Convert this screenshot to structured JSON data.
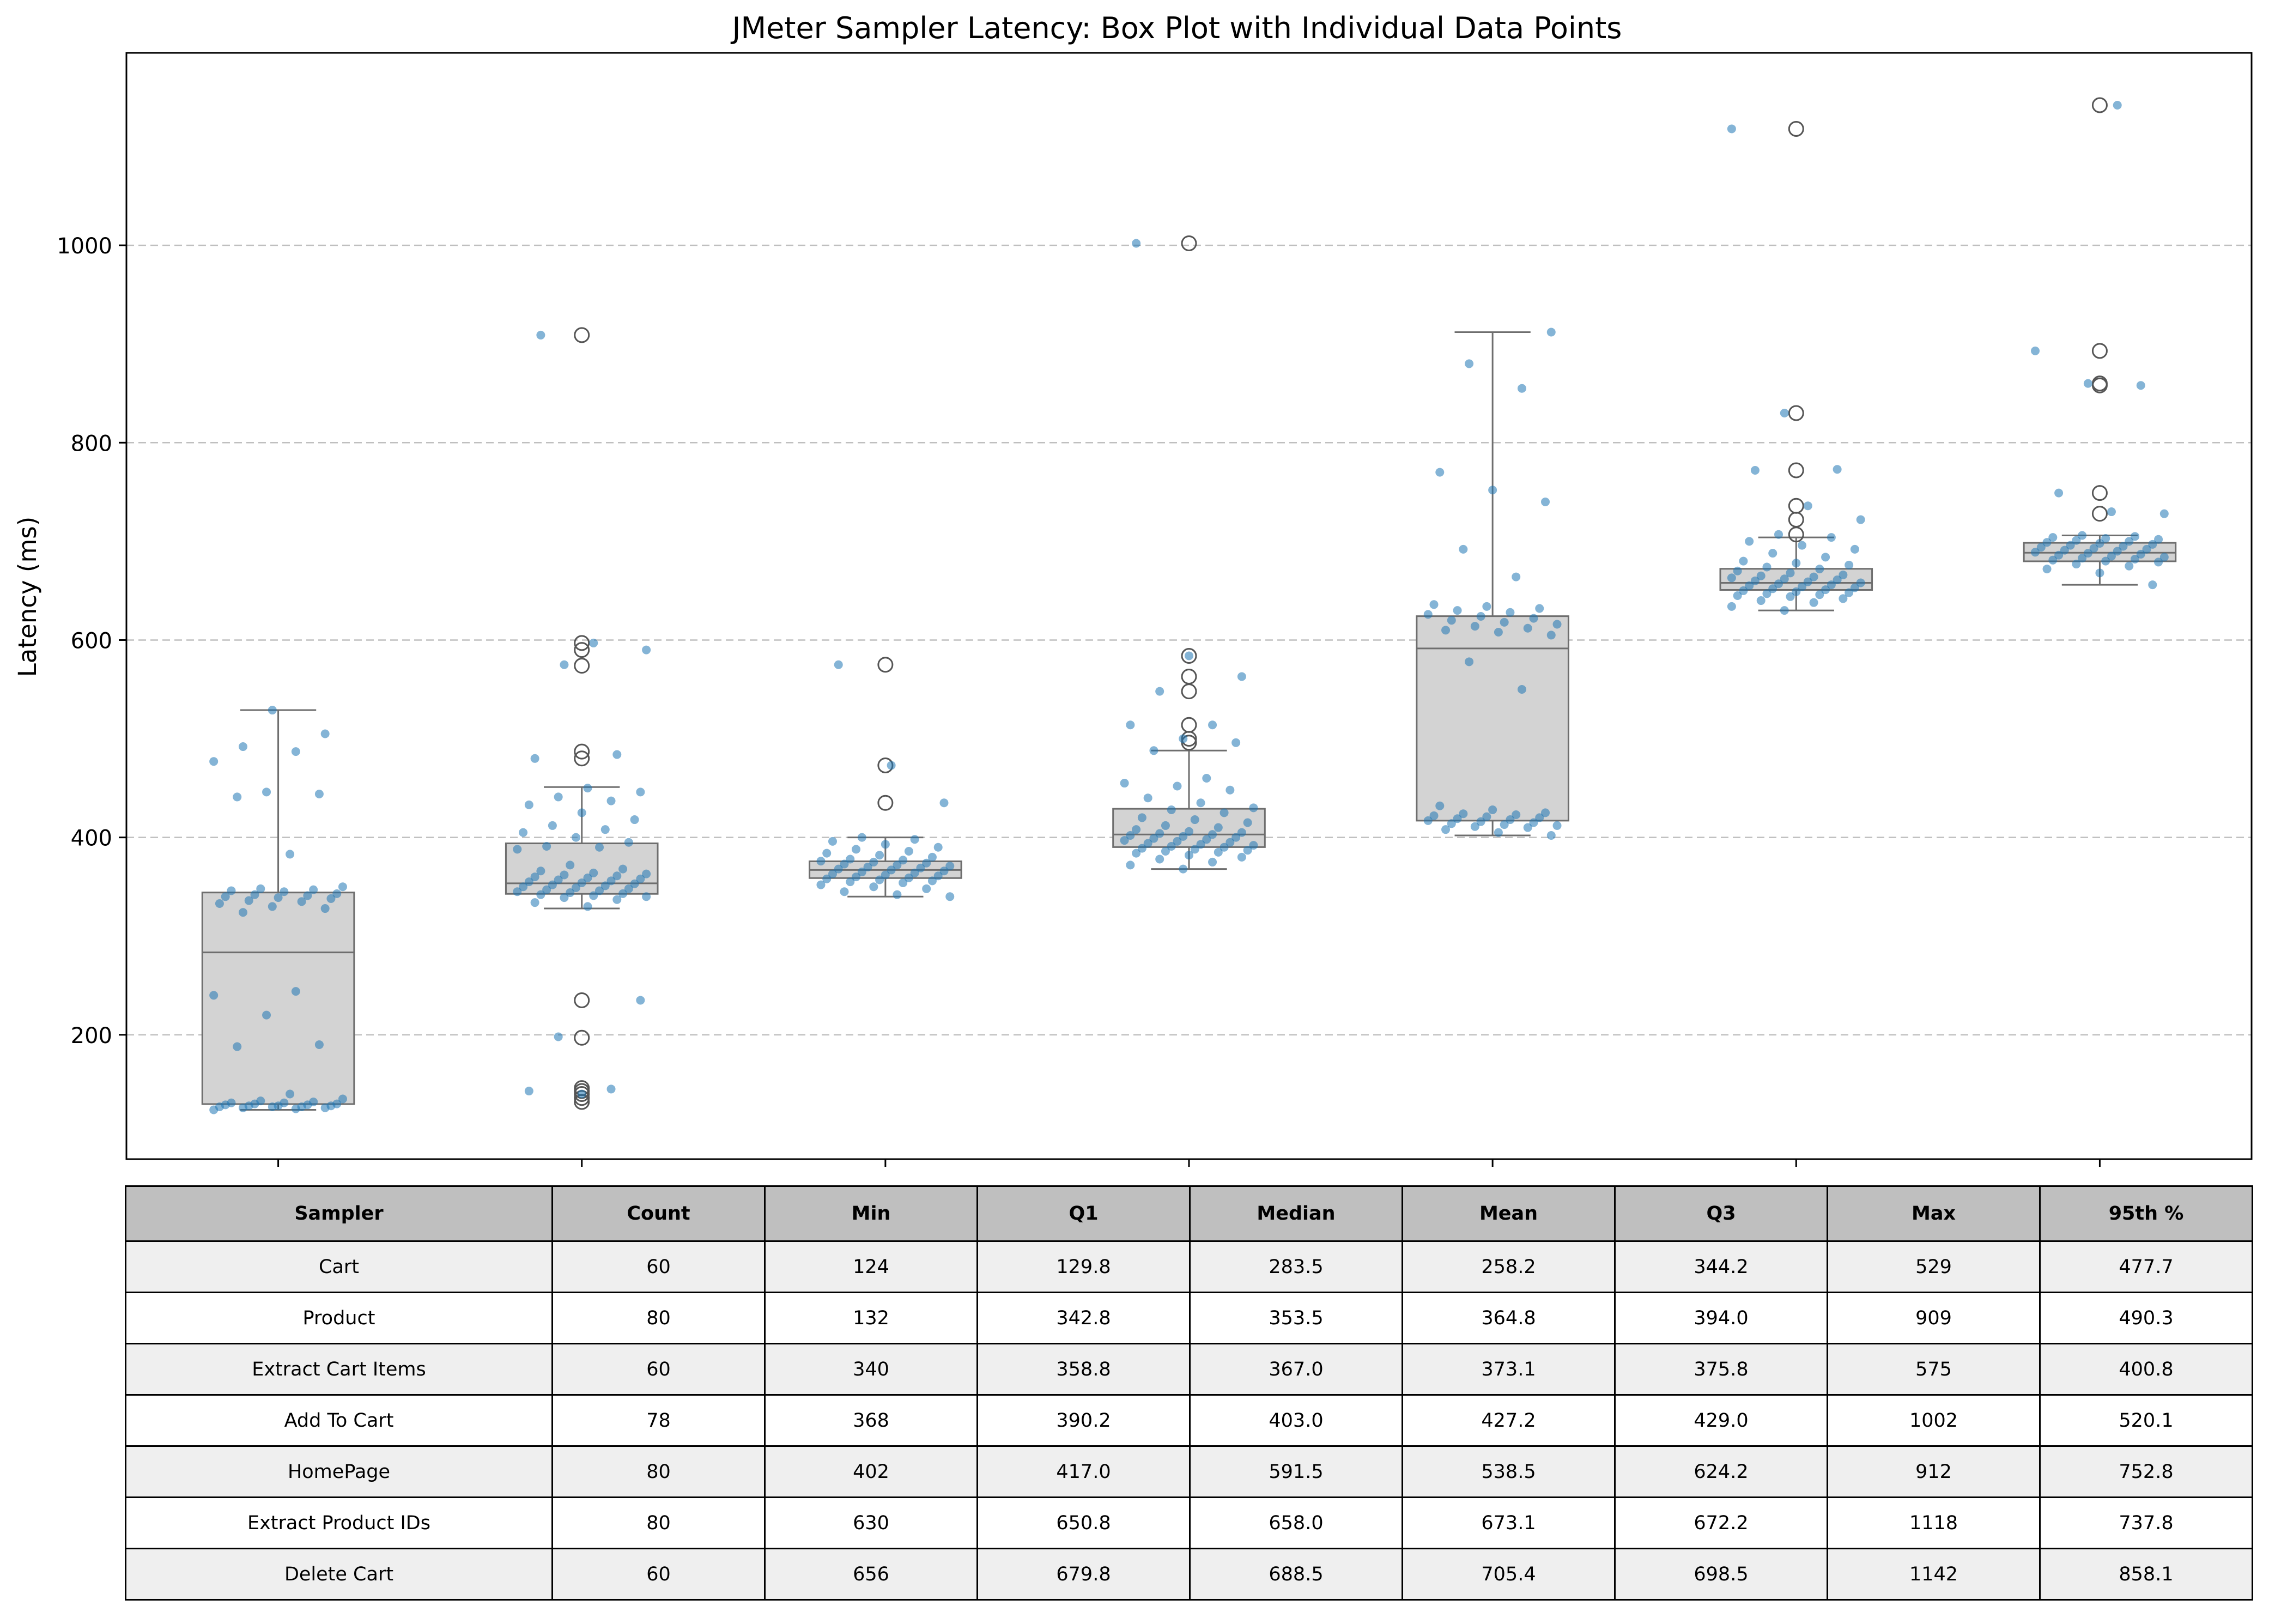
{
  "chart_data": {
    "type": "box",
    "title": "JMeter Sampler Latency: Box Plot with Individual Data Points",
    "xlabel": "",
    "ylabel": "Latency (ms)",
    "ylim": [
      74,
      1195
    ],
    "yticks": [
      200,
      400,
      600,
      800,
      1000
    ],
    "grid": "y-dashed",
    "colors": {
      "box_fill": "#d3d3d3",
      "box_edge": "#6e6e6e",
      "points": "#1f77b4",
      "grid": "#bfbfbf"
    },
    "samplers": [
      {
        "whisker_low": 124,
        "q1": 129.8,
        "median": 283.5,
        "q3": 344.2,
        "whisker_high": 529,
        "outliers": [],
        "points": [
          124,
          125,
          126,
          126,
          127,
          127,
          127,
          128,
          128,
          128,
          129,
          129,
          130,
          130,
          131,
          131,
          132,
          133,
          135,
          140,
          188,
          190,
          220,
          240,
          244,
          324,
          328,
          330,
          333,
          335,
          336,
          338,
          339,
          340,
          341,
          342,
          343,
          345,
          346,
          347,
          348,
          350,
          383,
          441,
          444,
          446,
          477,
          487,
          492,
          505,
          529
        ]
      },
      {
        "whisker_low": 328,
        "q1": 342.8,
        "median": 353.5,
        "q3": 394.0,
        "whisker_high": 451,
        "outliers": [
          132,
          136,
          140,
          143,
          146,
          197,
          235,
          574,
          590,
          597,
          480,
          487,
          909
        ],
        "points": [
          140,
          143,
          145,
          198,
          235,
          330,
          334,
          337,
          339,
          340,
          341,
          342,
          343,
          344,
          345,
          346,
          347,
          348,
          349,
          350,
          351,
          352,
          353,
          354,
          355,
          356,
          357,
          358,
          359,
          360,
          361,
          362,
          363,
          364,
          366,
          368,
          372,
          388,
          390,
          391,
          395,
          400,
          405,
          408,
          412,
          418,
          425,
          433,
          437,
          441,
          446,
          450,
          480,
          484,
          575,
          590,
          597,
          909
        ]
      },
      {
        "whisker_low": 340,
        "q1": 358.8,
        "median": 367.0,
        "q3": 375.8,
        "whisker_high": 400,
        "outliers": [
          435,
          473,
          575
        ],
        "points": [
          340,
          342,
          345,
          348,
          350,
          352,
          354,
          355,
          356,
          357,
          358,
          359,
          360,
          361,
          362,
          363,
          364,
          365,
          366,
          367,
          368,
          369,
          370,
          371,
          372,
          373,
          374,
          375,
          376,
          377,
          378,
          380,
          382,
          384,
          386,
          388,
          390,
          393,
          396,
          398,
          400,
          435,
          473,
          575
        ]
      },
      {
        "whisker_low": 368,
        "q1": 390.2,
        "median": 403.0,
        "q3": 429.0,
        "whisker_high": 488,
        "outliers": [
          496,
          500,
          514,
          548,
          563,
          584,
          1002
        ],
        "points": [
          368,
          372,
          375,
          378,
          380,
          382,
          384,
          385,
          386,
          387,
          388,
          389,
          390,
          391,
          392,
          393,
          394,
          395,
          396,
          397,
          398,
          399,
          400,
          401,
          402,
          403,
          404,
          405,
          406,
          408,
          410,
          412,
          415,
          418,
          420,
          425,
          428,
          430,
          435,
          440,
          448,
          452,
          455,
          460,
          488,
          496,
          500,
          514,
          514,
          548,
          563,
          584,
          1002
        ]
      },
      {
        "whisker_low": 402,
        "q1": 417.0,
        "median": 591.5,
        "q3": 624.2,
        "whisker_high": 912,
        "outliers": [],
        "points": [
          402,
          405,
          408,
          410,
          411,
          412,
          413,
          414,
          415,
          416,
          417,
          418,
          419,
          420,
          421,
          422,
          423,
          424,
          425,
          428,
          432,
          550,
          578,
          605,
          608,
          610,
          612,
          614,
          616,
          618,
          620,
          622,
          624,
          626,
          628,
          630,
          632,
          634,
          636,
          664,
          692,
          740,
          752,
          770,
          855,
          880,
          912
        ]
      },
      {
        "whisker_low": 630,
        "q1": 650.8,
        "median": 658.0,
        "q3": 672.2,
        "whisker_high": 704,
        "outliers": [
          707,
          722,
          736,
          772,
          830,
          1118
        ],
        "points": [
          630,
          634,
          638,
          640,
          642,
          644,
          645,
          646,
          647,
          648,
          649,
          650,
          651,
          652,
          653,
          654,
          655,
          656,
          657,
          658,
          659,
          660,
          661,
          662,
          663,
          664,
          665,
          666,
          668,
          670,
          672,
          674,
          676,
          678,
          680,
          684,
          688,
          692,
          696,
          700,
          704,
          707,
          722,
          736,
          772,
          773,
          830,
          1118
        ]
      },
      {
        "whisker_low": 656,
        "q1": 679.8,
        "median": 688.5,
        "q3": 698.5,
        "whisker_high": 706,
        "outliers": [
          728,
          749,
          858,
          860,
          893,
          1142
        ],
        "points": [
          656,
          668,
          672,
          675,
          677,
          679,
          680,
          681,
          682,
          683,
          684,
          685,
          686,
          687,
          688,
          689,
          690,
          691,
          692,
          693,
          694,
          695,
          696,
          697,
          698,
          699,
          700,
          701,
          702,
          703,
          704,
          705,
          706,
          728,
          730,
          749,
          858,
          860,
          893,
          1142
        ]
      }
    ]
  },
  "table": {
    "headers": [
      "Sampler",
      "Count",
      "Min",
      "Q1",
      "Median",
      "Mean",
      "Q3",
      "Max",
      "95th %"
    ],
    "rows": [
      [
        "Cart",
        "60",
        "124",
        "129.8",
        "283.5",
        "258.2",
        "344.2",
        "529",
        "477.7"
      ],
      [
        "Product",
        "80",
        "132",
        "342.8",
        "353.5",
        "364.8",
        "394.0",
        "909",
        "490.3"
      ],
      [
        "Extract Cart Items",
        "60",
        "340",
        "358.8",
        "367.0",
        "373.1",
        "375.8",
        "575",
        "400.8"
      ],
      [
        "Add To Cart",
        "78",
        "368",
        "390.2",
        "403.0",
        "427.2",
        "429.0",
        "1002",
        "520.1"
      ],
      [
        "HomePage",
        "80",
        "402",
        "417.0",
        "591.5",
        "538.5",
        "624.2",
        "912",
        "752.8"
      ],
      [
        "Extract Product IDs",
        "80",
        "630",
        "650.8",
        "658.0",
        "673.1",
        "672.2",
        "1118",
        "737.8"
      ],
      [
        "Delete Cart",
        "60",
        "656",
        "679.8",
        "688.5",
        "705.4",
        "698.5",
        "1142",
        "858.1"
      ]
    ]
  }
}
